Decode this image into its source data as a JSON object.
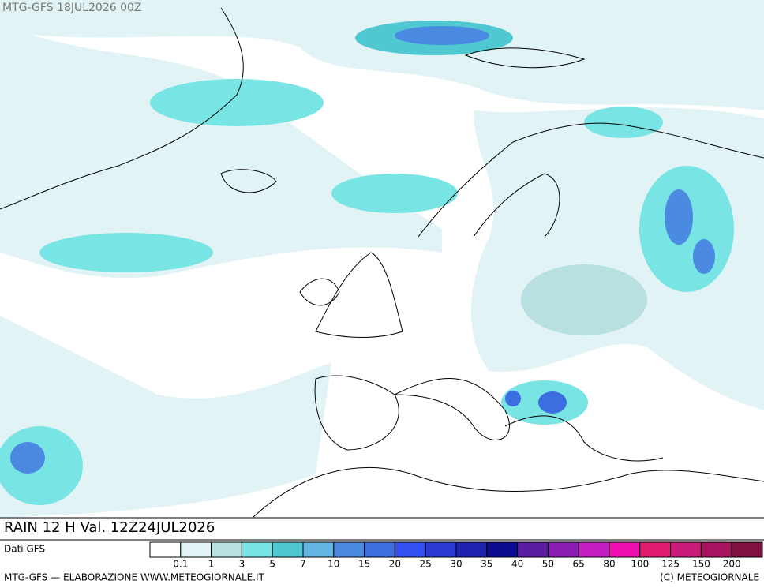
{
  "header": {
    "run": "MTG-GFS 18JUL2026 00Z"
  },
  "title": "RAIN 12 H Val. 12Z24JUL2026",
  "legend": {
    "caption": "Dati GFS",
    "colors": [
      "#ffffff",
      "#e2f3f5",
      "#b8e0e0",
      "#78e4e4",
      "#50c8d2",
      "#64b4e4",
      "#4a8ae0",
      "#3c6ee2",
      "#3250f0",
      "#2a3ad2",
      "#1e24b0",
      "#0c0c90",
      "#5a1ca0",
      "#8c1eb4",
      "#c41ec4",
      "#f010b0",
      "#e01c70",
      "#c81c78",
      "#a81460",
      "#801040"
    ],
    "labels": [
      "0.1",
      "1",
      "3",
      "5",
      "7",
      "10",
      "15",
      "20",
      "25",
      "30",
      "35",
      "40",
      "50",
      "65",
      "80",
      "100",
      "125",
      "150",
      "200"
    ]
  },
  "footer": {
    "left": "MTG-GFS — ELABORAZIONE WWW.METEOGIORNALE.IT",
    "right": "(C) METEOGIORNALE"
  }
}
